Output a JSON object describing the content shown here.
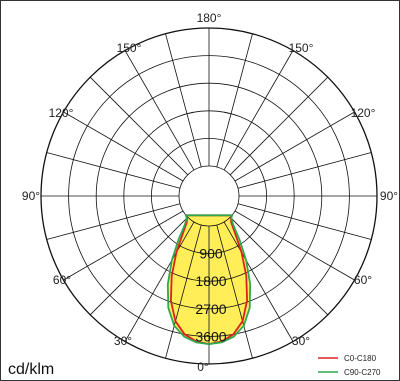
{
  "chart_data": {
    "type": "polar",
    "unit": "cd/klm",
    "angle_labels": [
      "180°",
      "150°",
      "150°",
      "120°",
      "120°",
      "90°",
      "90°",
      "60°",
      "60°",
      "30°",
      "30°",
      "0°"
    ],
    "radial_labels": [
      "900",
      "1800",
      "2700",
      "3600"
    ],
    "radial_max": 4500,
    "grid": true,
    "legend_position": "bottom-right",
    "colors": {
      "fill": "#ffee58",
      "grid": "#111111",
      "c0": "#e0201e",
      "c90": "#2fa84f"
    },
    "series": [
      {
        "name": "C0-C180",
        "points": [
          [
            0,
            3850
          ],
          [
            5,
            3780
          ],
          [
            10,
            3600
          ],
          [
            15,
            3250
          ],
          [
            20,
            2650
          ],
          [
            25,
            1900
          ],
          [
            30,
            1150
          ],
          [
            35,
            500
          ],
          [
            40,
            150
          ],
          [
            45,
            30
          ],
          [
            50,
            0
          ]
        ]
      },
      {
        "name": "C90-C270",
        "points": [
          [
            0,
            3850
          ],
          [
            5,
            3810
          ],
          [
            10,
            3680
          ],
          [
            15,
            3400
          ],
          [
            20,
            2900
          ],
          [
            25,
            2200
          ],
          [
            30,
            1450
          ],
          [
            35,
            750
          ],
          [
            40,
            250
          ],
          [
            45,
            50
          ],
          [
            50,
            0
          ]
        ]
      }
    ]
  }
}
